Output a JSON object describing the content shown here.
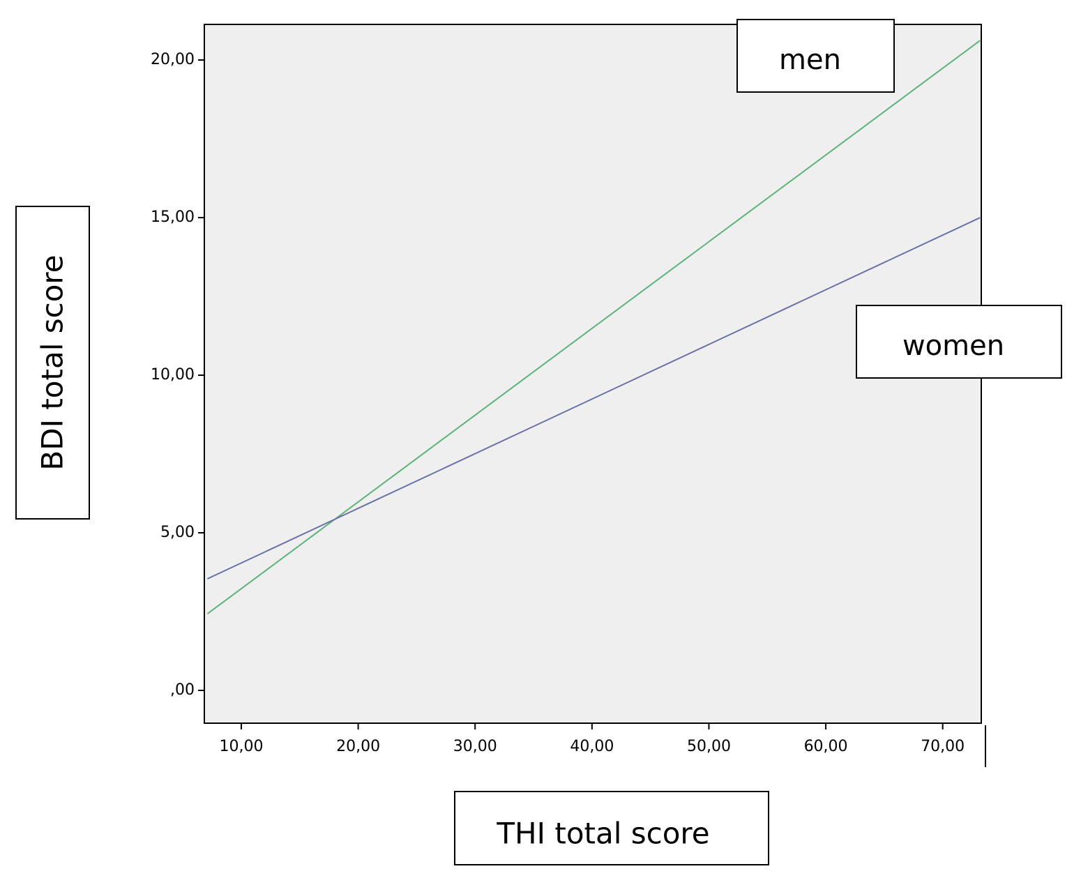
{
  "chart_data": {
    "type": "line",
    "x_label": "THI total score",
    "y_label": "BDI total score",
    "xlim": [
      6.84,
      73.3
    ],
    "ylim": [
      -1.04,
      21.13
    ],
    "xticks": [
      {
        "value": 10,
        "label": "10,00"
      },
      {
        "value": 20,
        "label": "20,00"
      },
      {
        "value": 30,
        "label": "30,00"
      },
      {
        "value": 40,
        "label": "40,00"
      },
      {
        "value": 50,
        "label": "50,00"
      },
      {
        "value": 60,
        "label": "60,00"
      },
      {
        "value": 70,
        "label": "70,00"
      }
    ],
    "yticks": [
      {
        "value": 0,
        "label": ",00"
      },
      {
        "value": 5,
        "label": "5,00"
      },
      {
        "value": 10,
        "label": "10,00"
      },
      {
        "value": 15,
        "label": "15,00"
      },
      {
        "value": 20,
        "label": "20,00"
      }
    ],
    "x": [
      7.1,
      73.2
    ],
    "series": [
      {
        "name": "men",
        "color": "#5cb37a",
        "values": [
          2.43,
          20.62
        ]
      },
      {
        "name": "women",
        "color": "#6a70a6",
        "values": [
          3.54,
          15.0
        ]
      }
    ]
  }
}
